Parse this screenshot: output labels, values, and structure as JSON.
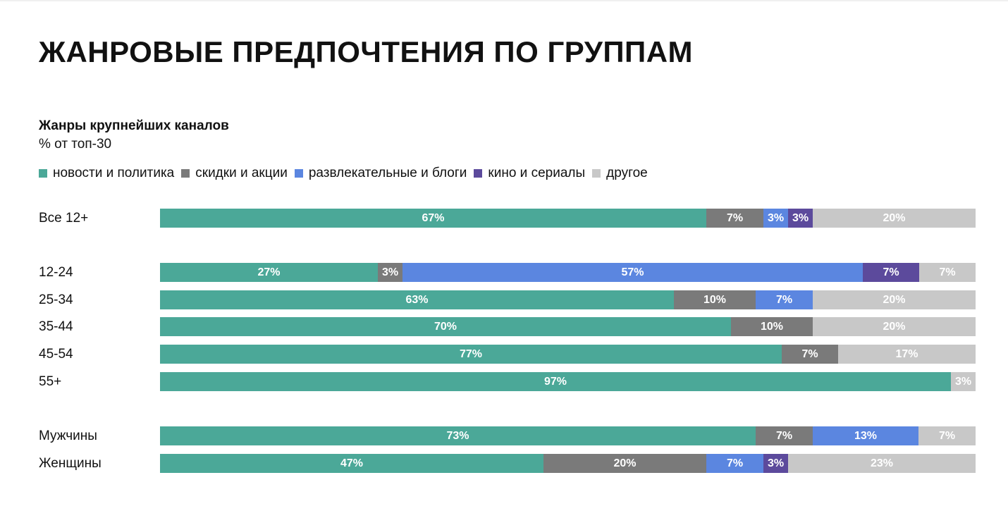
{
  "page_title": "ЖАНРОВЫЕ ПРЕДПОЧТЕНИЯ ПО ГРУППАМ",
  "chart_data": {
    "type": "bar",
    "orientation": "horizontal",
    "stacked": true,
    "normalized": true,
    "title": "Жанры крупнейших каналов",
    "subtitle": "% от топ-30",
    "legend_position": "top-left",
    "grid": false,
    "xlim": [
      0,
      100
    ],
    "categories": [
      "Все 12+",
      "12-24",
      "25-34",
      "35-44",
      "45-54",
      "55+",
      "Мужчины",
      "Женщины"
    ],
    "series": [
      {
        "name": "новости и политика",
        "color": "#4ba898",
        "values": [
          67,
          27,
          63,
          70,
          77,
          97,
          73,
          47
        ],
        "labels": [
          "67%",
          "27%",
          "63%",
          "70%",
          "77%",
          "97%",
          "73%",
          "47%"
        ]
      },
      {
        "name": "скидки и акции",
        "color": "#7a7a7a",
        "values": [
          7,
          3,
          10,
          10,
          7,
          0,
          7,
          20
        ],
        "labels": [
          "7%",
          "3%",
          "10%",
          "10%",
          "7%",
          "",
          "7%",
          "20%"
        ]
      },
      {
        "name": "развлекательные и блоги",
        "color": "#5b86e0",
        "values": [
          3,
          57,
          7,
          0,
          0,
          0,
          13,
          7
        ],
        "labels": [
          "3%",
          "57%",
          "7%",
          "",
          "",
          "",
          "13%",
          "7%"
        ]
      },
      {
        "name": "кино и сериалы",
        "color": "#5c4a9c",
        "values": [
          3,
          7,
          0,
          0,
          0,
          0,
          0,
          3
        ],
        "labels": [
          "3%",
          "7%",
          "",
          "",
          "",
          "",
          "",
          "3%"
        ]
      },
      {
        "name": "другое",
        "color": "#c8c8c8",
        "values": [
          20,
          7,
          20,
          20,
          17,
          3,
          7,
          23
        ],
        "labels": [
          "20%",
          "7%",
          "20%",
          "20%",
          "17%",
          "3%",
          "7%",
          "23%"
        ]
      }
    ]
  }
}
